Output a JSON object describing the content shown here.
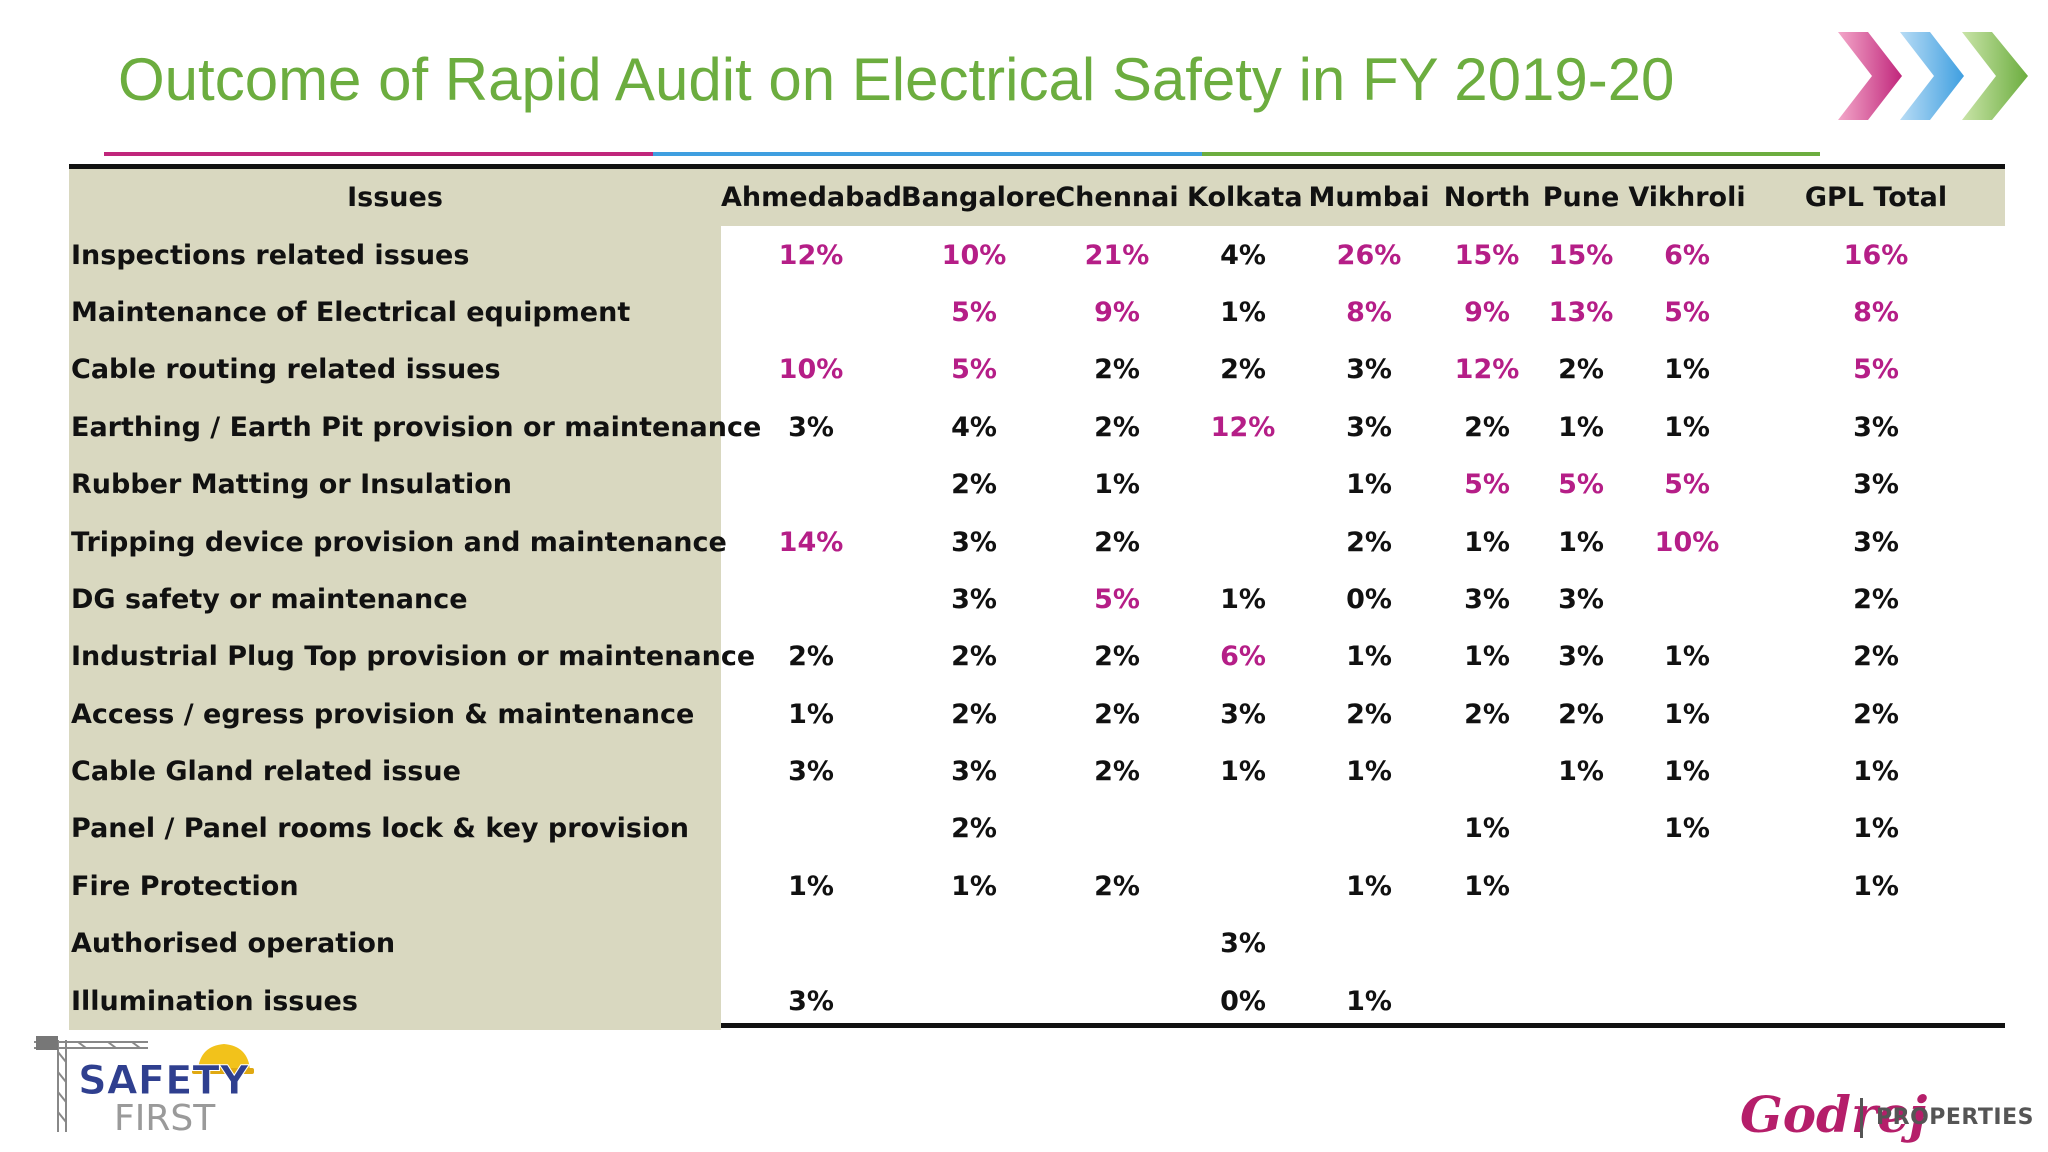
{
  "title": "Outcome of Rapid Audit on Electrical Safety in FY 2019-20",
  "colors": {
    "title": "#6cad3f",
    "highlight": "#b51e87",
    "issue_column_bg": "#d9d8c0",
    "rule_magenta": "#c0267b",
    "rule_blue": "#3f9fe0",
    "rule_green": "#6cad3f"
  },
  "icons": [
    "chevrons-logo-icon",
    "safety-first-logo",
    "godrej-properties-logo"
  ],
  "table": {
    "headers": [
      "Issues",
      "Ahmedabad",
      "Bangalore",
      "Chennai",
      "Kolkata",
      "Mumbai",
      "North",
      "Pune",
      "Vikhroli",
      "GPL Total"
    ],
    "rows": [
      {
        "issue": "Inspections related issues",
        "values": [
          "12%",
          "10%",
          "21%",
          "4%",
          "26%",
          "15%",
          "15%",
          "6%",
          "16%"
        ],
        "highlight": [
          true,
          true,
          true,
          false,
          true,
          true,
          true,
          true,
          true
        ]
      },
      {
        "issue": "Maintenance of Electrical equipment",
        "values": [
          "",
          "5%",
          "9%",
          "1%",
          "8%",
          "9%",
          "13%",
          "5%",
          "8%"
        ],
        "highlight": [
          false,
          true,
          true,
          false,
          true,
          true,
          true,
          true,
          true
        ]
      },
      {
        "issue": "Cable routing related issues",
        "values": [
          "10%",
          "5%",
          "2%",
          "2%",
          "3%",
          "12%",
          "2%",
          "1%",
          "5%"
        ],
        "highlight": [
          true,
          true,
          false,
          false,
          false,
          true,
          false,
          false,
          true
        ]
      },
      {
        "issue": "Earthing / Earth Pit provision or maintenance",
        "values": [
          "3%",
          "4%",
          "2%",
          "12%",
          "3%",
          "2%",
          "1%",
          "1%",
          "3%"
        ],
        "highlight": [
          false,
          false,
          false,
          true,
          false,
          false,
          false,
          false,
          false
        ]
      },
      {
        "issue": "Rubber Matting or Insulation",
        "values": [
          "",
          "2%",
          "1%",
          "",
          "1%",
          "5%",
          "5%",
          "5%",
          "3%"
        ],
        "highlight": [
          false,
          false,
          false,
          false,
          false,
          true,
          true,
          true,
          false
        ]
      },
      {
        "issue": "Tripping device provision and maintenance",
        "values": [
          "14%",
          "3%",
          "2%",
          "",
          "2%",
          "1%",
          "1%",
          "10%",
          "3%"
        ],
        "highlight": [
          true,
          false,
          false,
          false,
          false,
          false,
          false,
          true,
          false
        ]
      },
      {
        "issue": "DG safety or maintenance",
        "values": [
          "",
          "3%",
          "5%",
          "1%",
          "0%",
          "3%",
          "3%",
          "",
          "2%"
        ],
        "highlight": [
          false,
          false,
          true,
          false,
          false,
          false,
          false,
          false,
          false
        ]
      },
      {
        "issue": "Industrial Plug Top provision or maintenance",
        "values": [
          "2%",
          "2%",
          "2%",
          "6%",
          "1%",
          "1%",
          "3%",
          "1%",
          "2%"
        ],
        "highlight": [
          false,
          false,
          false,
          true,
          false,
          false,
          false,
          false,
          false
        ]
      },
      {
        "issue": "Access / egress provision & maintenance",
        "values": [
          "1%",
          "2%",
          "2%",
          "3%",
          "2%",
          "2%",
          "2%",
          "1%",
          "2%"
        ],
        "highlight": [
          false,
          false,
          false,
          false,
          false,
          false,
          false,
          false,
          false
        ]
      },
      {
        "issue": "Cable Gland related issue",
        "values": [
          "3%",
          "3%",
          "2%",
          "1%",
          "1%",
          "",
          "1%",
          "1%",
          "1%"
        ],
        "highlight": [
          false,
          false,
          false,
          false,
          false,
          false,
          false,
          false,
          false
        ]
      },
      {
        "issue": "Panel / Panel rooms lock & key provision",
        "values": [
          "",
          "2%",
          "",
          "",
          "",
          "1%",
          "",
          "1%",
          "1%"
        ],
        "highlight": [
          false,
          false,
          false,
          false,
          false,
          false,
          false,
          false,
          false
        ]
      },
      {
        "issue": "Fire Protection",
        "values": [
          "1%",
          "1%",
          "2%",
          "",
          "1%",
          "1%",
          "",
          "",
          "1%"
        ],
        "highlight": [
          false,
          false,
          false,
          false,
          false,
          false,
          false,
          false,
          false
        ]
      },
      {
        "issue": "Authorised operation",
        "values": [
          "",
          "",
          "",
          "3%",
          "",
          "",
          "",
          "",
          ""
        ],
        "highlight": [
          false,
          false,
          false,
          false,
          false,
          false,
          false,
          false,
          false
        ]
      },
      {
        "issue": "Illumination issues",
        "values": [
          "3%",
          "",
          "",
          "0%",
          "1%",
          "",
          "",
          "",
          ""
        ],
        "highlight": [
          false,
          false,
          false,
          false,
          false,
          false,
          false,
          false,
          false
        ]
      }
    ]
  },
  "logos": {
    "safety_line1": "SAFETY",
    "safety_line2": "FIRST",
    "godrej_script": "Godrej",
    "godrej_properties": "PROPERTIES"
  }
}
